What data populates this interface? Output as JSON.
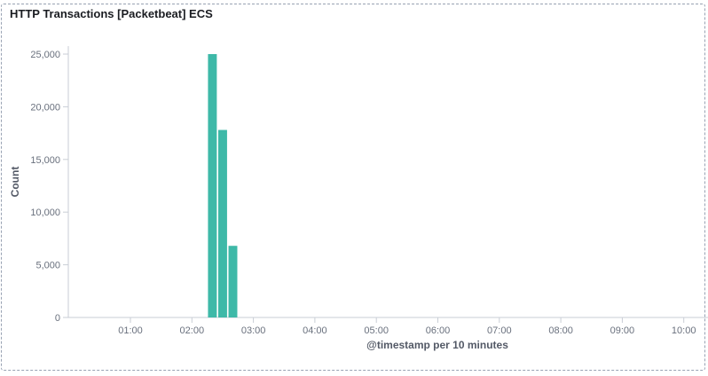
{
  "panel": {
    "title": "HTTP Transactions [Packetbeat] ECS"
  },
  "colors": {
    "bar": "#3eb9a8",
    "axis": "#c9ced6",
    "text": "#69707d"
  },
  "chart_data": {
    "type": "bar",
    "title": "",
    "xlabel": "@timestamp per 10 minutes",
    "ylabel": "Count",
    "ylim": [
      0,
      25500
    ],
    "x_ticks": [
      "01:00",
      "02:00",
      "03:00",
      "04:00",
      "05:00",
      "06:00",
      "07:00",
      "08:00",
      "09:00",
      "10:00"
    ],
    "y_ticks": [
      "0",
      "5,000",
      "10,000",
      "15,000",
      "20,000",
      "25,000"
    ],
    "y_tick_values": [
      0,
      5000,
      10000,
      15000,
      20000,
      25000
    ],
    "grid": false,
    "bars": [
      {
        "x": "02:20",
        "value": 25000
      },
      {
        "x": "02:30",
        "value": 17800
      },
      {
        "x": "02:40",
        "value": 6800
      }
    ]
  }
}
